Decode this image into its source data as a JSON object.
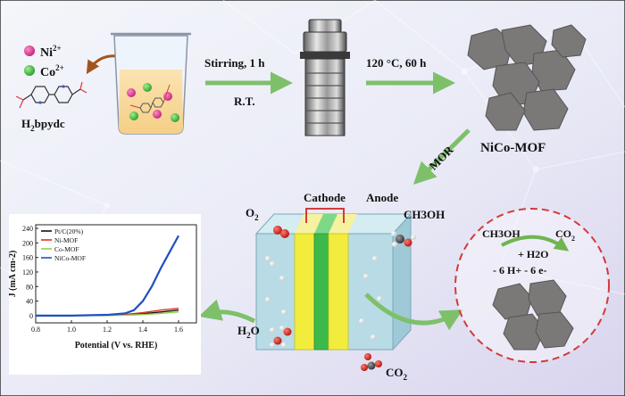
{
  "labels": {
    "ni": "Ni",
    "ni_sup": "2+",
    "co": "Co",
    "co_sup": "2+",
    "ligand": "H",
    "ligand_sub": "2",
    "ligand_rest": "bpydc",
    "step1_top": "Stirring,  1 h",
    "step1_bottom": "R.T.",
    "step2": "120 °C,  60 h",
    "product": "NiCo-MOF",
    "mor": "MOR",
    "cathode": "Cathode",
    "anode": "Anode",
    "o2": "O",
    "o2_sub": "2",
    "ch3oh": "CH3OH",
    "h2o_left": "H",
    "h2o_left_sub": "2",
    "h2o_left_rest": "O",
    "co2_bottom": "CO",
    "co2_bottom_sub": "2",
    "circle_ch3oh": "CH3OH",
    "circle_co2": "CO",
    "circle_co2_sub": "2",
    "circle_h2o": "+ H2O",
    "circle_electrons": "- 6 H+  - 6 e-"
  },
  "colors": {
    "ni_ion": "#d6338f",
    "co_ion": "#3fbf3f",
    "arrow_green": "#7ec06a",
    "electrolyte": "#b8dbe6",
    "electrode_yellow": "#f2ec3c",
    "membrane_green": "#3cb94a",
    "mof_gray": "#7b7878",
    "dashed_red": "#d33a3a"
  },
  "chart_data": {
    "type": "line",
    "xlabel": "Potential (V vs. RHE)",
    "ylabel": "J (mA cm-2)",
    "xlim": [
      0.8,
      1.7
    ],
    "ylim": [
      -20,
      250
    ],
    "xticks": [
      "0.8",
      "1.0",
      "1.2",
      "1.4",
      "1.6"
    ],
    "yticks": [
      "0",
      "40",
      "80",
      "120",
      "160",
      "200",
      "240"
    ],
    "legend_position": "top-left",
    "series": [
      {
        "name": "Pt/C(20%)",
        "color": "#111111",
        "x": [
          0.8,
          1.0,
          1.2,
          1.3,
          1.4,
          1.5,
          1.6
        ],
        "y": [
          0,
          0,
          1,
          2,
          5,
          10,
          15
        ]
      },
      {
        "name": "Ni-MOF",
        "color": "#e0301e",
        "x": [
          0.8,
          1.0,
          1.2,
          1.3,
          1.4,
          1.5,
          1.6
        ],
        "y": [
          0,
          0,
          1,
          3,
          8,
          15,
          20
        ]
      },
      {
        "name": "Co-MOF",
        "color": "#8fd14f",
        "x": [
          0.8,
          1.0,
          1.2,
          1.3,
          1.4,
          1.5,
          1.6
        ],
        "y": [
          0,
          0,
          0,
          1,
          3,
          6,
          10
        ]
      },
      {
        "name": "NiCo-MOF",
        "color": "#1f4fbf",
        "x": [
          0.8,
          1.0,
          1.2,
          1.3,
          1.35,
          1.4,
          1.45,
          1.5,
          1.55,
          1.6
        ],
        "y": [
          0,
          0,
          2,
          6,
          15,
          40,
          80,
          130,
          175,
          220
        ]
      }
    ]
  }
}
